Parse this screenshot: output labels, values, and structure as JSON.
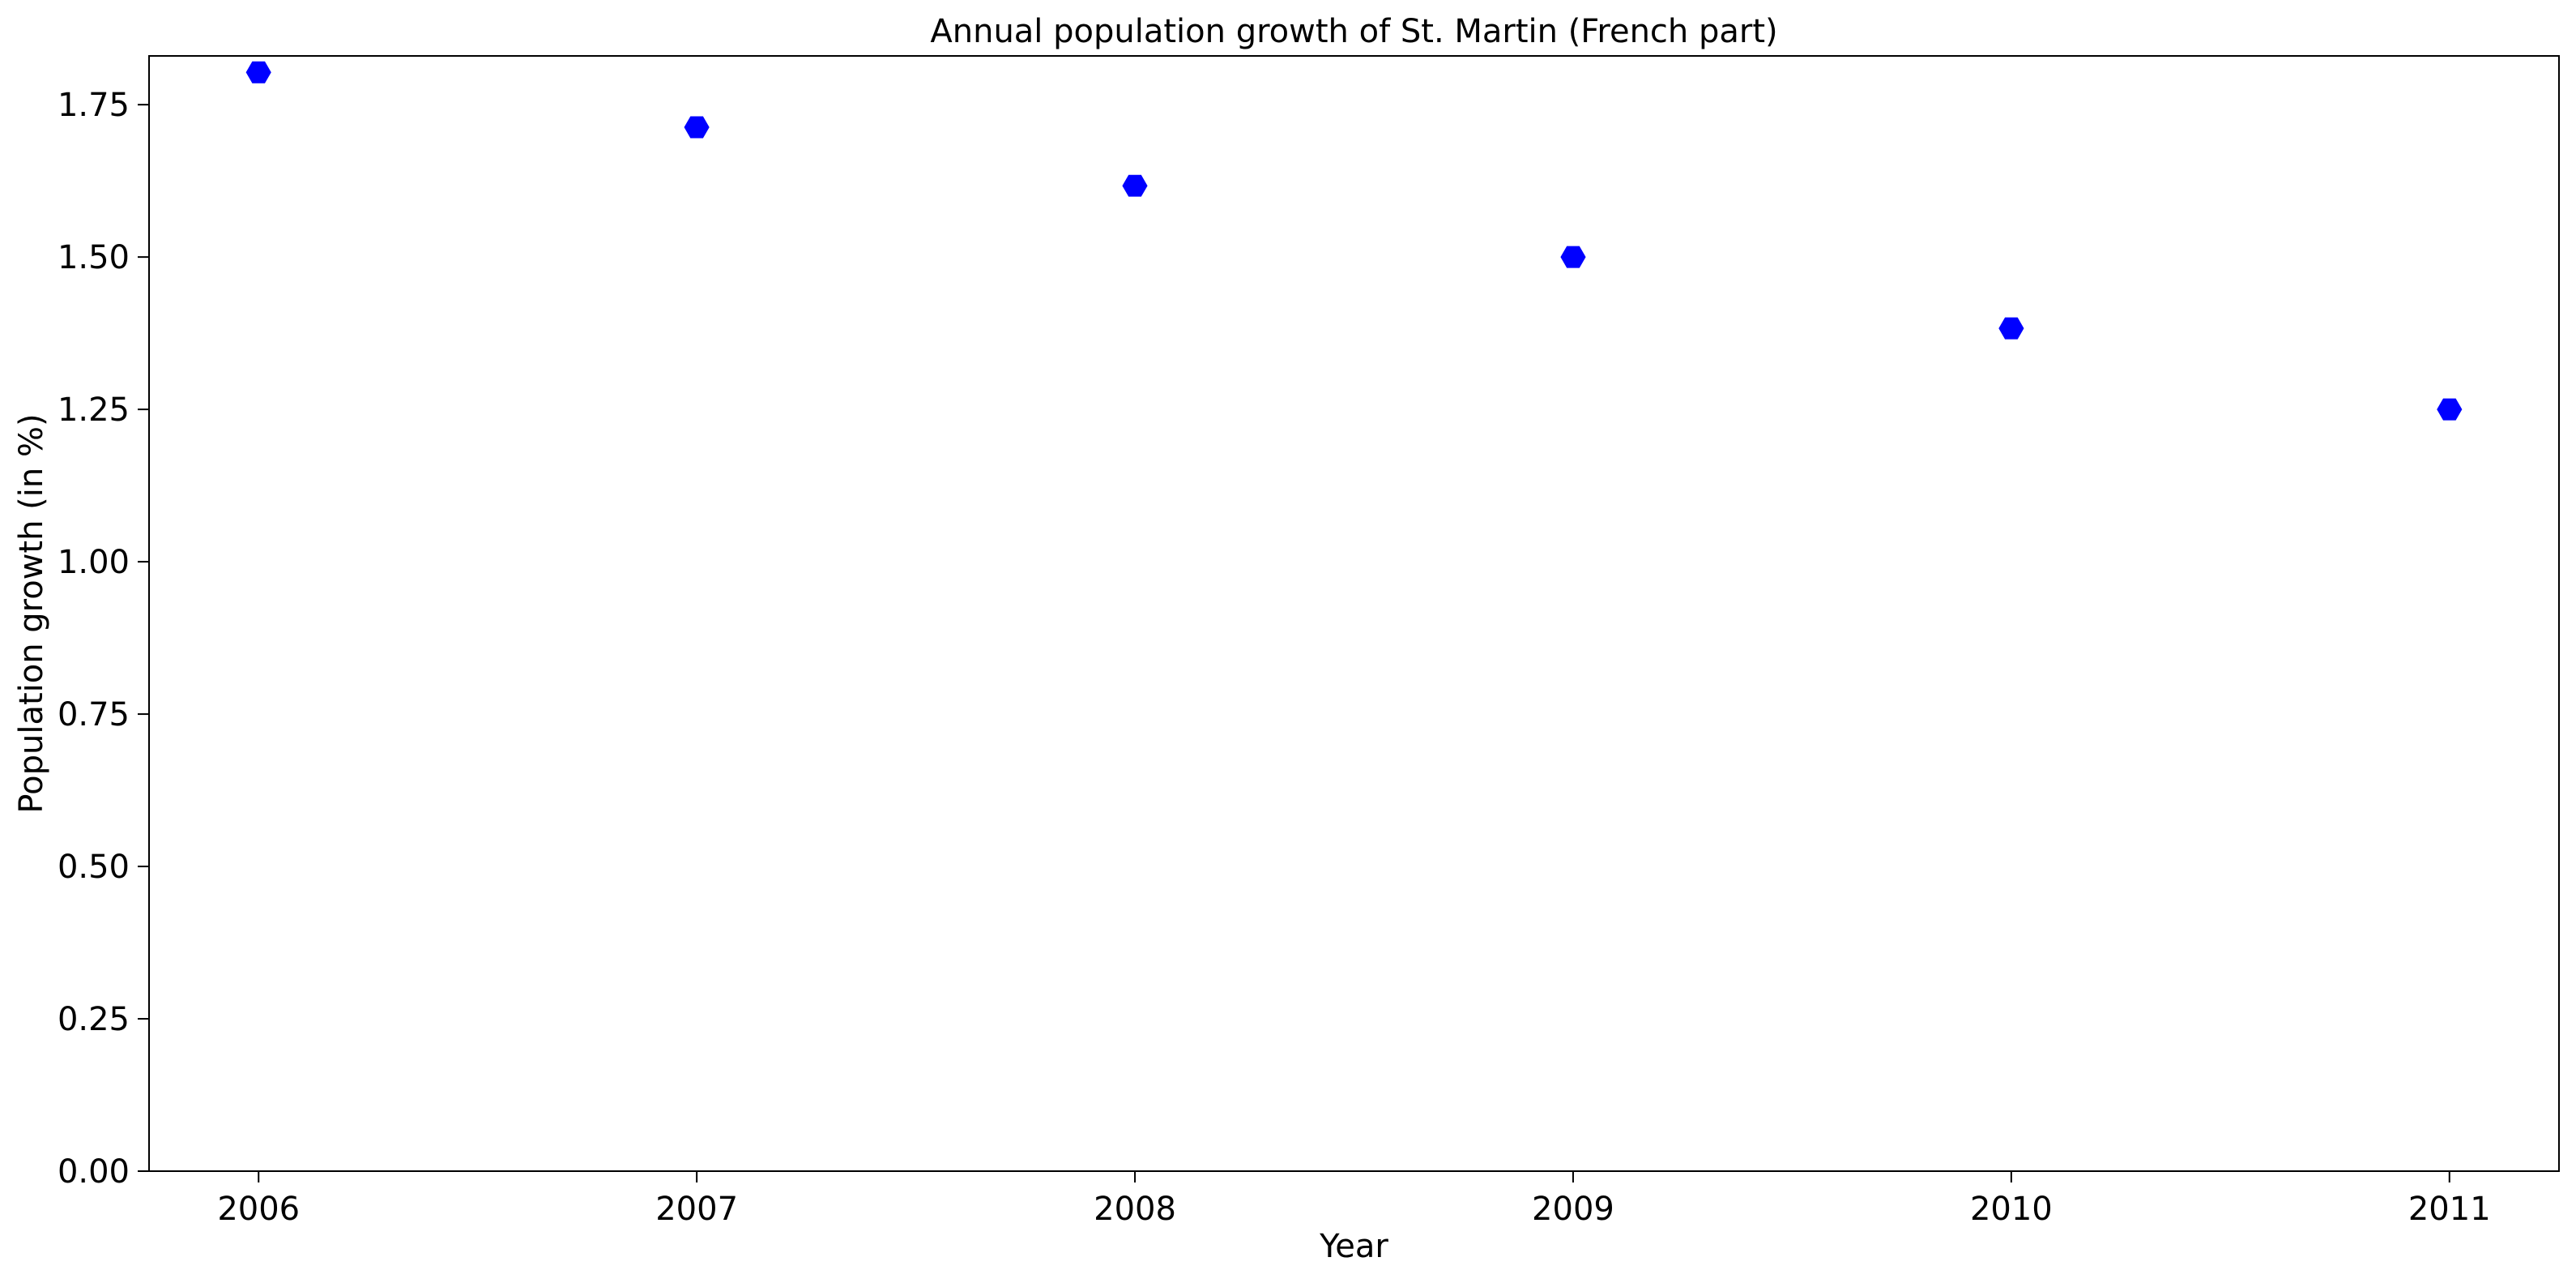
{
  "chart_data": {
    "type": "scatter",
    "title": "Annual population growth of St. Martin (French part)",
    "xlabel": "Year",
    "ylabel": "Population growth (in %)",
    "x": [
      2006,
      2007,
      2008,
      2009,
      2010,
      2011
    ],
    "x_tick_labels": [
      "2006",
      "2007",
      "2008",
      "2009",
      "2010",
      "2011"
    ],
    "y_ticks": [
      0.0,
      0.25,
      0.5,
      0.75,
      1.0,
      1.25,
      1.5,
      1.75
    ],
    "y_tick_labels": [
      "0.00",
      "0.25",
      "0.50",
      "0.75",
      "1.00",
      "1.25",
      "1.50",
      "1.75"
    ],
    "xlim": [
      2005.75,
      2011.25
    ],
    "ylim": [
      0.0,
      1.83
    ],
    "series": [
      {
        "values": [
          1.803,
          1.713,
          1.617,
          1.5,
          1.383,
          1.25
        ],
        "color": "#0000ff",
        "marker": "hexagon"
      }
    ],
    "grid": false,
    "legend": "none"
  }
}
